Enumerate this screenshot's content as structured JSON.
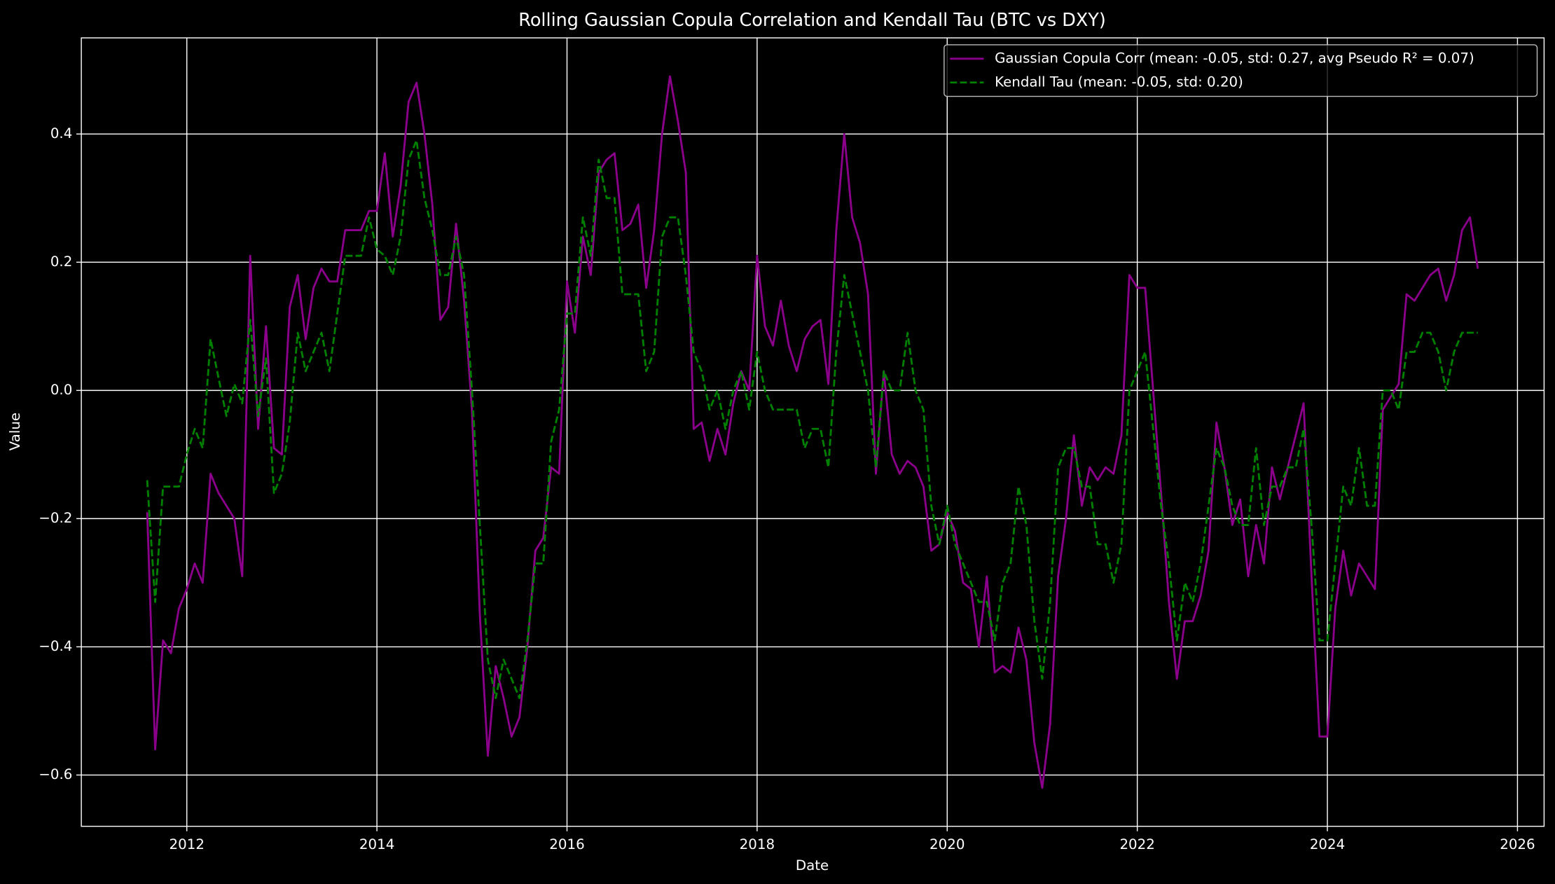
{
  "chart_data": {
    "type": "line",
    "title": "Rolling Gaussian Copula Correlation and Kendall Tau (BTC vs DXY)",
    "xlabel": "Date",
    "ylabel": "Value",
    "xlim": [
      2010.89,
      2026.28
    ],
    "ylim": [
      -0.68,
      0.55
    ],
    "xticks": [
      2012,
      2014,
      2016,
      2018,
      2020,
      2022,
      2024,
      2026
    ],
    "yticks": [
      {
        "value": -0.6,
        "label": "−0.6"
      },
      {
        "value": -0.4,
        "label": "−0.4"
      },
      {
        "value": -0.2,
        "label": "−0.2"
      },
      {
        "value": 0,
        "label": "0.0"
      },
      0.2,
      0.4
    ],
    "grid": true,
    "legend": "upper right",
    "x": [
      2011.583,
      2011.667,
      2011.75,
      2011.833,
      2011.917,
      2012,
      2012.083,
      2012.167,
      2012.25,
      2012.333,
      2012.417,
      2012.5,
      2012.583,
      2012.667,
      2012.75,
      2012.833,
      2012.917,
      2013,
      2013.083,
      2013.167,
      2013.25,
      2013.333,
      2013.417,
      2013.5,
      2013.583,
      2013.667,
      2013.75,
      2013.833,
      2013.917,
      2014,
      2014.083,
      2014.167,
      2014.25,
      2014.333,
      2014.417,
      2014.5,
      2014.583,
      2014.667,
      2014.75,
      2014.833,
      2014.917,
      2015,
      2015.083,
      2015.167,
      2015.25,
      2015.333,
      2015.417,
      2015.5,
      2015.583,
      2015.667,
      2015.75,
      2015.833,
      2015.917,
      2016,
      2016.083,
      2016.167,
      2016.25,
      2016.333,
      2016.417,
      2016.5,
      2016.583,
      2016.667,
      2016.75,
      2016.833,
      2016.917,
      2017,
      2017.083,
      2017.167,
      2017.25,
      2017.333,
      2017.417,
      2017.5,
      2017.583,
      2017.667,
      2017.75,
      2017.833,
      2017.917,
      2018,
      2018.083,
      2018.167,
      2018.25,
      2018.333,
      2018.417,
      2018.5,
      2018.583,
      2018.667,
      2018.75,
      2018.833,
      2018.917,
      2019,
      2019.083,
      2019.167,
      2019.25,
      2019.333,
      2019.417,
      2019.5,
      2019.583,
      2019.667,
      2019.75,
      2019.833,
      2019.917,
      2020,
      2020.083,
      2020.167,
      2020.25,
      2020.333,
      2020.417,
      2020.5,
      2020.583,
      2020.667,
      2020.75,
      2020.833,
      2020.917,
      2021,
      2021.083,
      2021.167,
      2021.25,
      2021.333,
      2021.417,
      2021.5,
      2021.583,
      2021.667,
      2021.75,
      2021.833,
      2021.917,
      2022,
      2022.083,
      2022.167,
      2022.25,
      2022.333,
      2022.417,
      2022.5,
      2022.583,
      2022.667,
      2022.75,
      2022.833,
      2022.917,
      2023,
      2023.083,
      2023.167,
      2023.25,
      2023.333,
      2023.417,
      2023.5,
      2023.583,
      2023.667,
      2023.75,
      2023.833,
      2023.917,
      2024,
      2024.083,
      2024.167,
      2024.25,
      2024.333,
      2024.417,
      2024.5,
      2024.583,
      2024.667,
      2024.75,
      2024.833,
      2024.917,
      2025,
      2025.083,
      2025.167,
      2025.25,
      2025.333,
      2025.417,
      2025.5,
      2025.583
    ],
    "series": [
      {
        "name": "Gaussian Copula Corr (mean: -0.05, std: 0.27, avg Pseudo R² = 0.07)",
        "color": "#8b008b",
        "dash": false,
        "values": [
          -0.19,
          -0.56,
          -0.39,
          -0.41,
          -0.34,
          -0.31,
          -0.27,
          -0.3,
          -0.13,
          -0.16,
          -0.18,
          -0.2,
          -0.29,
          0.21,
          -0.06,
          0.1,
          -0.09,
          -0.1,
          0.13,
          0.18,
          0.08,
          0.16,
          0.19,
          0.17,
          0.17,
          0.25,
          0.25,
          0.25,
          0.28,
          0.28,
          0.37,
          0.24,
          0.32,
          0.45,
          0.48,
          0.4,
          0.29,
          0.11,
          0.13,
          0.26,
          0.14,
          -0.03,
          -0.35,
          -0.57,
          -0.43,
          -0.48,
          -0.54,
          -0.51,
          -0.4,
          -0.25,
          -0.23,
          -0.12,
          -0.13,
          0.17,
          0.09,
          0.24,
          0.18,
          0.34,
          0.36,
          0.37,
          0.25,
          0.26,
          0.29,
          0.16,
          0.25,
          0.4,
          0.49,
          0.42,
          0.34,
          -0.06,
          -0.05,
          -0.11,
          -0.06,
          -0.1,
          -0.02,
          0.03,
          0.0,
          0.21,
          0.1,
          0.07,
          0.14,
          0.07,
          0.03,
          0.08,
          0.1,
          0.11,
          0.01,
          0.25,
          0.4,
          0.27,
          0.23,
          0.15,
          -0.13,
          0.03,
          -0.1,
          -0.13,
          -0.11,
          -0.12,
          -0.15,
          -0.25,
          -0.24,
          -0.19,
          -0.22,
          -0.3,
          -0.31,
          -0.4,
          -0.29,
          -0.44,
          -0.43,
          -0.44,
          -0.37,
          -0.42,
          -0.55,
          -0.62,
          -0.52,
          -0.29,
          -0.2,
          -0.07,
          -0.18,
          -0.12,
          -0.14,
          -0.12,
          -0.13,
          -0.07,
          0.18,
          0.16,
          0.16,
          0.0,
          -0.16,
          -0.33,
          -0.45,
          -0.36,
          -0.36,
          -0.32,
          -0.25,
          -0.05,
          -0.12,
          -0.21,
          -0.17,
          -0.29,
          -0.21,
          -0.27,
          -0.12,
          -0.17,
          -0.12,
          -0.07,
          -0.02,
          -0.29,
          -0.54,
          -0.54,
          -0.34,
          -0.25,
          -0.32,
          -0.27,
          -0.29,
          -0.31,
          -0.03,
          -0.01,
          0.01,
          0.15,
          0.14,
          0.16,
          0.18,
          0.19,
          0.14,
          0.18,
          0.25,
          0.27,
          0.19
        ]
      },
      {
        "name": "Kendall Tau (mean: -0.05, std: 0.20)",
        "color": "#008000",
        "dash": true,
        "values": [
          -0.14,
          -0.33,
          -0.15,
          -0.15,
          -0.15,
          -0.1,
          -0.06,
          -0.09,
          0.08,
          0.02,
          -0.04,
          0.01,
          -0.02,
          0.11,
          -0.04,
          0.05,
          -0.16,
          -0.13,
          -0.05,
          0.09,
          0.03,
          0.06,
          0.09,
          0.03,
          0.12,
          0.21,
          0.21,
          0.21,
          0.27,
          0.22,
          0.21,
          0.18,
          0.24,
          0.36,
          0.39,
          0.3,
          0.25,
          0.18,
          0.18,
          0.24,
          0.18,
          0.0,
          -0.21,
          -0.42,
          -0.48,
          -0.42,
          -0.45,
          -0.48,
          -0.39,
          -0.27,
          -0.27,
          -0.08,
          -0.03,
          0.12,
          0.12,
          0.27,
          0.21,
          0.36,
          0.3,
          0.3,
          0.15,
          0.15,
          0.15,
          0.03,
          0.06,
          0.24,
          0.27,
          0.27,
          0.18,
          0.06,
          0.03,
          -0.03,
          0.0,
          -0.06,
          0.0,
          0.03,
          -0.03,
          0.06,
          0.0,
          -0.03,
          -0.03,
          -0.03,
          -0.03,
          -0.09,
          -0.06,
          -0.06,
          -0.12,
          0.06,
          0.18,
          0.12,
          0.06,
          0.0,
          -0.12,
          0.03,
          0.0,
          0.0,
          0.09,
          0.0,
          -0.03,
          -0.18,
          -0.24,
          -0.18,
          -0.24,
          -0.27,
          -0.3,
          -0.33,
          -0.33,
          -0.39,
          -0.3,
          -0.27,
          -0.15,
          -0.21,
          -0.36,
          -0.45,
          -0.33,
          -0.12,
          -0.09,
          -0.09,
          -0.15,
          -0.15,
          -0.24,
          -0.24,
          -0.3,
          -0.24,
          0.0,
          0.03,
          0.06,
          -0.06,
          -0.18,
          -0.27,
          -0.39,
          -0.3,
          -0.33,
          -0.27,
          -0.18,
          -0.09,
          -0.12,
          -0.18,
          -0.21,
          -0.21,
          -0.09,
          -0.21,
          -0.15,
          -0.15,
          -0.12,
          -0.12,
          -0.06,
          -0.21,
          -0.39,
          -0.39,
          -0.27,
          -0.15,
          -0.18,
          -0.09,
          -0.18,
          -0.18,
          0.0,
          0.0,
          -0.03,
          0.06,
          0.06,
          0.09,
          0.09,
          0.06,
          0.0,
          0.06,
          0.09,
          0.09,
          0.09
        ]
      }
    ]
  }
}
